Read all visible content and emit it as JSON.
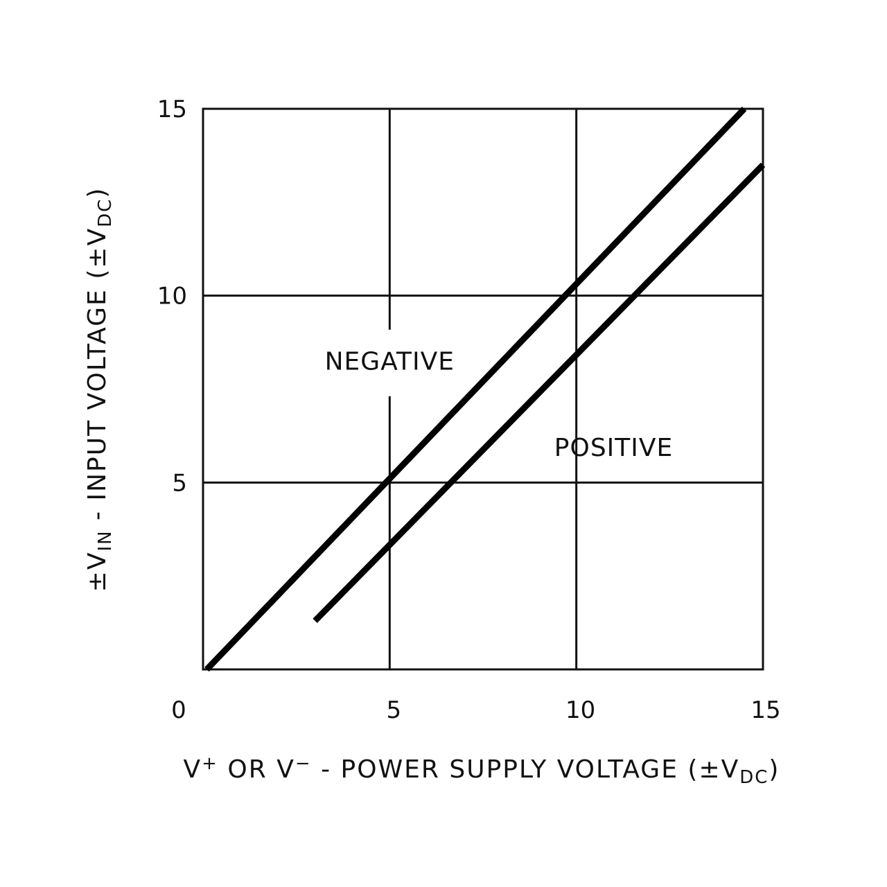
{
  "chart_data": {
    "type": "line",
    "title": "",
    "xlabel": {
      "parts": [
        {
          "text": "V",
          "style": "normal"
        },
        {
          "text": "+",
          "style": "sup"
        },
        {
          "text": " OR V",
          "style": "normal"
        },
        {
          "text": "−",
          "style": "sup"
        },
        {
          "text": " - POWER SUPPLY VOLTAGE (±V",
          "style": "normal"
        },
        {
          "text": "DC",
          "style": "sub"
        },
        {
          "text": ")",
          "style": "normal"
        }
      ]
    },
    "ylabel": {
      "parts": [
        {
          "text": "±V",
          "style": "normal"
        },
        {
          "text": "IN",
          "style": "sub"
        },
        {
          "text": " - INPUT VOLTAGE (±V",
          "style": "normal"
        },
        {
          "text": "DC",
          "style": "sub"
        },
        {
          "text": ")",
          "style": "normal"
        }
      ]
    },
    "xlim": [
      0,
      15
    ],
    "ylim": [
      0,
      15
    ],
    "x_ticks": [
      0,
      5,
      10,
      15
    ],
    "y_ticks": [
      5,
      10,
      15
    ],
    "grid": true,
    "series": [
      {
        "name": "NEGATIVE",
        "x": [
          0.1,
          14.5
        ],
        "y": [
          0.0,
          15.0
        ],
        "label": {
          "x": 5.0,
          "y": 8.2
        }
      },
      {
        "name": "POSITIVE",
        "x": [
          3.0,
          15.0
        ],
        "y": [
          1.3,
          13.5
        ],
        "label": {
          "x": 11.0,
          "y": 5.9
        }
      }
    ]
  }
}
